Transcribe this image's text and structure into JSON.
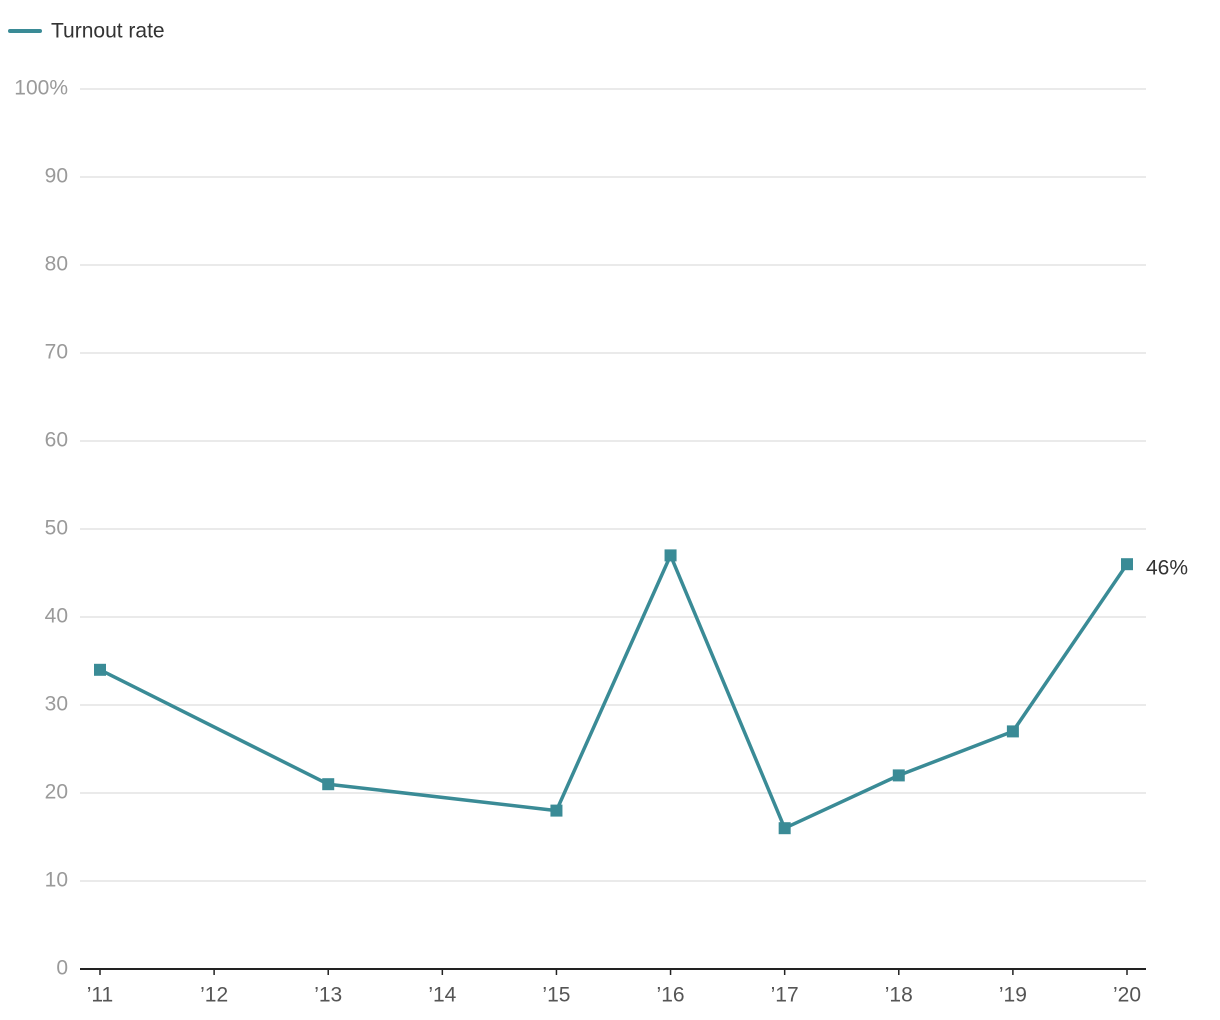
{
  "chart_data": {
    "type": "line",
    "x": [
      11,
      13,
      15,
      16,
      17,
      18,
      19,
      20
    ],
    "xlim": [
      11,
      20
    ],
    "xticks": [
      {
        "value": 11,
        "label": "’11"
      },
      {
        "value": 12,
        "label": "’12"
      },
      {
        "value": 13,
        "label": "’13"
      },
      {
        "value": 14,
        "label": "’14"
      },
      {
        "value": 15,
        "label": "’15"
      },
      {
        "value": 16,
        "label": "’16"
      },
      {
        "value": 17,
        "label": "’17"
      },
      {
        "value": 18,
        "label": "’18"
      },
      {
        "value": 19,
        "label": "’19"
      },
      {
        "value": 20,
        "label": "’20"
      }
    ],
    "ylim": [
      0,
      100
    ],
    "yticks": [
      0,
      10,
      20,
      30,
      40,
      50,
      60,
      70,
      80,
      90,
      {
        "value": 100,
        "label": "100%"
      }
    ],
    "grid": true,
    "legend": "top-left",
    "series": [
      {
        "name": "Turnout rate",
        "color": "#3a8b96",
        "values": [
          34,
          21,
          18,
          47,
          16,
          22,
          27,
          46
        ],
        "value_labels": [
          null,
          null,
          null,
          null,
          null,
          null,
          null,
          "46%"
        ]
      }
    ]
  }
}
